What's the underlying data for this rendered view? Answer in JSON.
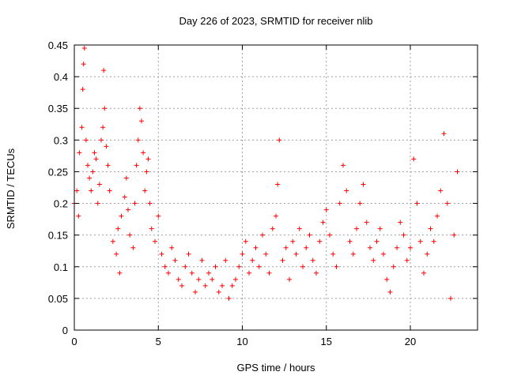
{
  "chart_data": {
    "type": "scatter",
    "title": "Day 226 of 2023, SRMTID for receiver nlib",
    "xlabel": "GPS time / hours",
    "ylabel": "SRMTID / TECUs",
    "xlim": [
      0,
      24
    ],
    "ylim": [
      0,
      0.45
    ],
    "xticks": [
      0,
      5,
      10,
      15,
      20
    ],
    "xtick_labels": [
      "0",
      "5",
      "10",
      "15",
      "20"
    ],
    "yticks": [
      0,
      0.05,
      0.1,
      0.15,
      0.2,
      0.25,
      0.3,
      0.35,
      0.4,
      0.45
    ],
    "ytick_labels": [
      "0",
      "0.05",
      "0.1",
      "0.15",
      "0.2",
      "0.25",
      "0.3",
      "0.35",
      "0.4",
      "0.45"
    ],
    "grid": true,
    "marker": "+",
    "color": "#ff0000",
    "series": [
      {
        "name": "SRMTID",
        "points": [
          [
            0.0,
            0.2
          ],
          [
            0.15,
            0.22
          ],
          [
            0.25,
            0.18
          ],
          [
            0.3,
            0.28
          ],
          [
            0.45,
            0.32
          ],
          [
            0.5,
            0.38
          ],
          [
            0.55,
            0.42
          ],
          [
            0.6,
            0.445
          ],
          [
            0.7,
            0.3
          ],
          [
            0.8,
            0.26
          ],
          [
            0.9,
            0.24
          ],
          [
            1.0,
            0.22
          ],
          [
            1.1,
            0.25
          ],
          [
            1.2,
            0.28
          ],
          [
            1.3,
            0.27
          ],
          [
            1.4,
            0.2
          ],
          [
            1.5,
            0.23
          ],
          [
            1.6,
            0.3
          ],
          [
            1.7,
            0.32
          ],
          [
            1.75,
            0.41
          ],
          [
            1.8,
            0.35
          ],
          [
            1.9,
            0.29
          ],
          [
            2.0,
            0.26
          ],
          [
            2.1,
            0.22
          ],
          [
            2.3,
            0.14
          ],
          [
            2.5,
            0.12
          ],
          [
            2.6,
            0.16
          ],
          [
            2.7,
            0.09
          ],
          [
            2.8,
            0.18
          ],
          [
            3.0,
            0.21
          ],
          [
            3.1,
            0.24
          ],
          [
            3.2,
            0.19
          ],
          [
            3.3,
            0.15
          ],
          [
            3.5,
            0.13
          ],
          [
            3.6,
            0.2
          ],
          [
            3.7,
            0.26
          ],
          [
            3.8,
            0.3
          ],
          [
            3.9,
            0.35
          ],
          [
            4.0,
            0.33
          ],
          [
            4.1,
            0.28
          ],
          [
            4.2,
            0.22
          ],
          [
            4.3,
            0.25
          ],
          [
            4.4,
            0.27
          ],
          [
            4.5,
            0.2
          ],
          [
            4.6,
            0.16
          ],
          [
            4.8,
            0.14
          ],
          [
            5.0,
            0.18
          ],
          [
            5.2,
            0.12
          ],
          [
            5.4,
            0.1
          ],
          [
            5.6,
            0.09
          ],
          [
            5.8,
            0.13
          ],
          [
            6.0,
            0.11
          ],
          [
            6.2,
            0.08
          ],
          [
            6.4,
            0.07
          ],
          [
            6.6,
            0.1
          ],
          [
            6.8,
            0.12
          ],
          [
            7.0,
            0.09
          ],
          [
            7.2,
            0.06
          ],
          [
            7.4,
            0.08
          ],
          [
            7.6,
            0.11
          ],
          [
            7.8,
            0.07
          ],
          [
            8.0,
            0.09
          ],
          [
            8.2,
            0.08
          ],
          [
            8.4,
            0.1
          ],
          [
            8.6,
            0.06
          ],
          [
            8.8,
            0.07
          ],
          [
            9.0,
            0.11
          ],
          [
            9.2,
            0.05
          ],
          [
            9.4,
            0.07
          ],
          [
            9.6,
            0.08
          ],
          [
            9.8,
            0.1
          ],
          [
            10.0,
            0.12
          ],
          [
            10.2,
            0.14
          ],
          [
            10.4,
            0.09
          ],
          [
            10.6,
            0.11
          ],
          [
            10.8,
            0.13
          ],
          [
            11.0,
            0.1
          ],
          [
            11.2,
            0.15
          ],
          [
            11.4,
            0.12
          ],
          [
            11.6,
            0.09
          ],
          [
            11.8,
            0.16
          ],
          [
            12.0,
            0.18
          ],
          [
            12.1,
            0.23
          ],
          [
            12.2,
            0.3
          ],
          [
            12.4,
            0.11
          ],
          [
            12.6,
            0.13
          ],
          [
            12.8,
            0.08
          ],
          [
            13.0,
            0.14
          ],
          [
            13.2,
            0.12
          ],
          [
            13.4,
            0.16
          ],
          [
            13.6,
            0.1
          ],
          [
            13.8,
            0.13
          ],
          [
            14.0,
            0.15
          ],
          [
            14.2,
            0.11
          ],
          [
            14.4,
            0.09
          ],
          [
            14.6,
            0.14
          ],
          [
            14.8,
            0.17
          ],
          [
            15.0,
            0.19
          ],
          [
            15.2,
            0.15
          ],
          [
            15.4,
            0.12
          ],
          [
            15.6,
            0.1
          ],
          [
            15.8,
            0.2
          ],
          [
            16.0,
            0.26
          ],
          [
            16.2,
            0.22
          ],
          [
            16.4,
            0.14
          ],
          [
            16.6,
            0.12
          ],
          [
            16.8,
            0.16
          ],
          [
            17.0,
            0.2
          ],
          [
            17.2,
            0.23
          ],
          [
            17.4,
            0.17
          ],
          [
            17.6,
            0.13
          ],
          [
            17.8,
            0.11
          ],
          [
            18.0,
            0.14
          ],
          [
            18.2,
            0.16
          ],
          [
            18.4,
            0.12
          ],
          [
            18.6,
            0.08
          ],
          [
            18.8,
            0.06
          ],
          [
            19.0,
            0.1
          ],
          [
            19.2,
            0.13
          ],
          [
            19.4,
            0.17
          ],
          [
            19.6,
            0.15
          ],
          [
            19.8,
            0.11
          ],
          [
            20.0,
            0.13
          ],
          [
            20.2,
            0.27
          ],
          [
            20.4,
            0.2
          ],
          [
            20.6,
            0.14
          ],
          [
            20.8,
            0.09
          ],
          [
            21.0,
            0.12
          ],
          [
            21.2,
            0.16
          ],
          [
            21.4,
            0.14
          ],
          [
            21.6,
            0.18
          ],
          [
            21.8,
            0.22
          ],
          [
            22.0,
            0.31
          ],
          [
            22.2,
            0.2
          ],
          [
            22.4,
            0.05
          ],
          [
            22.6,
            0.15
          ],
          [
            22.8,
            0.25
          ]
        ]
      }
    ]
  }
}
